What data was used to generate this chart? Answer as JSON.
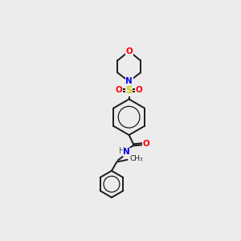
{
  "background_color": "#ececec",
  "bond_color": "#1a1a1a",
  "figsize": [
    3.0,
    3.0
  ],
  "dpi": 100,
  "atom_colors": {
    "O": "#ff0000",
    "N": "#0000ee",
    "S": "#cccc00",
    "C": "#1a1a1a",
    "H": "#555555"
  },
  "lw": 1.4,
  "fs": 7.5
}
